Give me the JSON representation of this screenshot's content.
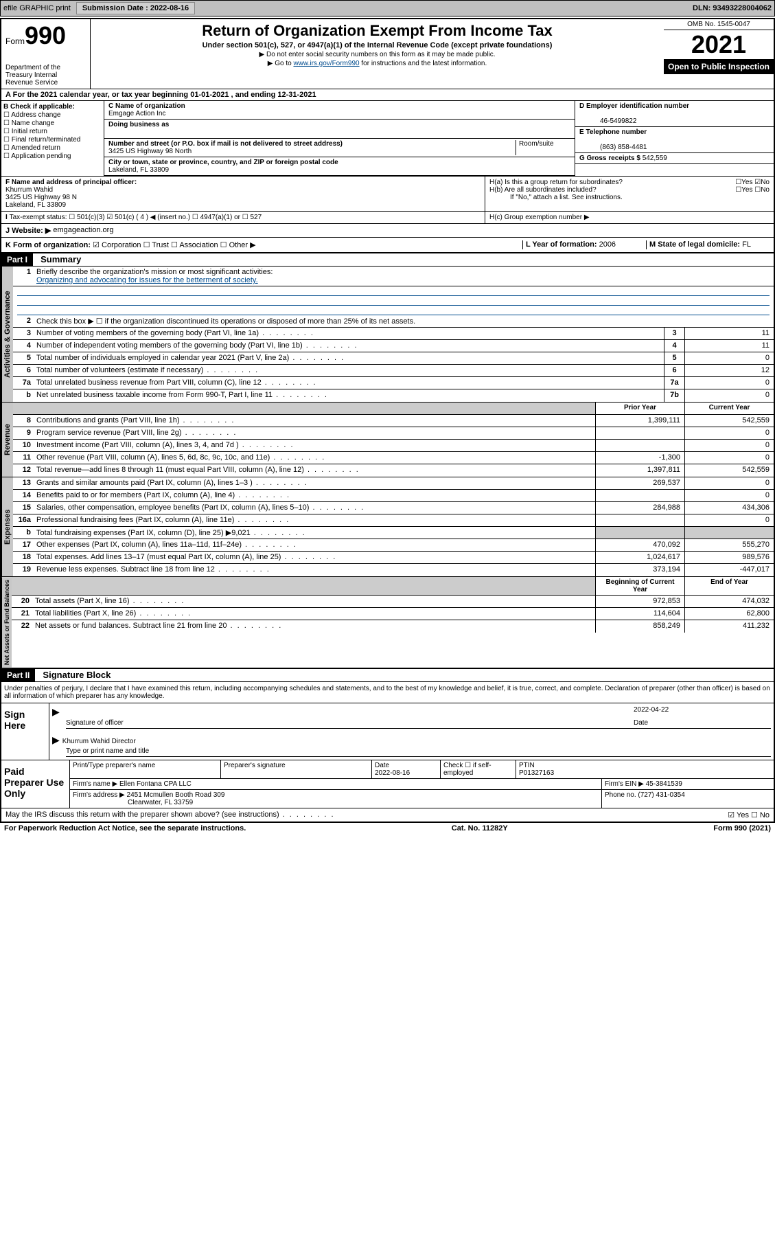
{
  "topbar": {
    "efile": "efile GRAPHIC print",
    "submission_label": "Submission Date : 2022-08-16",
    "dln_label": "DLN: 93493228004062"
  },
  "header": {
    "form_word": "Form",
    "form_num": "990",
    "title": "Return of Organization Exempt From Income Tax",
    "subtitle": "Under section 501(c), 527, or 4947(a)(1) of the Internal Revenue Code (except private foundations)",
    "note1": "▶ Do not enter social security numbers on this form as it may be made public.",
    "note2_pre": "▶ Go to ",
    "note2_link": "www.irs.gov/Form990",
    "note2_post": " for instructions and the latest information.",
    "dept": "Department of the Treasury Internal Revenue Service",
    "omb": "OMB No. 1545-0047",
    "year": "2021",
    "open": "Open to Public Inspection"
  },
  "sectionA": {
    "text": "For the 2021 calendar year, or tax year beginning 01-01-2021  , and ending 12-31-2021"
  },
  "sectionB": {
    "label": "B Check if applicable:",
    "items": [
      "Address change",
      "Name change",
      "Initial return",
      "Final return/terminated",
      "Amended return",
      "Application pending"
    ]
  },
  "sectionC": {
    "name_label": "C Name of organization",
    "name": "Emgage Action Inc",
    "dba_label": "Doing business as",
    "addr_label": "Number and street (or P.O. box if mail is not delivered to street address)",
    "room_label": "Room/suite",
    "addr": "3425 US Highway 98 North",
    "city_label": "City or town, state or province, country, and ZIP or foreign postal code",
    "city": "Lakeland, FL  33809"
  },
  "sectionD": {
    "label": "D Employer identification number",
    "value": "46-5499822"
  },
  "sectionE": {
    "label": "E Telephone number",
    "value": "(863) 858-4481"
  },
  "sectionG": {
    "label": "G Gross receipts $",
    "value": "542,559"
  },
  "sectionF": {
    "label": "F Name and address of principal officer:",
    "name": "Khurrum Wahid",
    "addr": "3425 US Highway 98 N",
    "city": "Lakeland, FL  33809"
  },
  "sectionH": {
    "ha": "H(a)  Is this a group return for subordinates?",
    "hb": "H(b)  Are all subordinates included?",
    "hb_note": "If \"No,\" attach a list. See instructions.",
    "hc": "H(c)  Group exemption number ▶"
  },
  "sectionI": {
    "label": "Tax-exempt status:",
    "opt1": "501(c)(3)",
    "opt2": "501(c) ( 4 ) ◀ (insert no.)",
    "opt3": "4947(a)(1) or",
    "opt4": "527"
  },
  "sectionJ": {
    "label": "J   Website: ▶",
    "value": "emgageaction.org"
  },
  "sectionK": {
    "label": "K Form of organization:",
    "opts": [
      "Corporation",
      "Trust",
      "Association",
      "Other ▶"
    ]
  },
  "sectionL": {
    "label": "L Year of formation:",
    "value": "2006"
  },
  "sectionM": {
    "label": "M State of legal domicile:",
    "value": "FL"
  },
  "part1": {
    "header": "Part I",
    "title": "Summary",
    "tab1": "Activities & Governance",
    "tab2": "Revenue",
    "tab3": "Expenses",
    "tab4": "Net Assets or Fund Balances",
    "line1": "Briefly describe the organization's mission or most significant activities:",
    "mission": "Organizing and advocating for issues for the betterment of society.",
    "line2": "Check this box ▶ ☐  if the organization discontinued its operations or disposed of more than 25% of its net assets.",
    "lines": [
      {
        "n": "3",
        "t": "Number of voting members of the governing body (Part VI, line 1a)",
        "b": "3",
        "v2": "11"
      },
      {
        "n": "4",
        "t": "Number of independent voting members of the governing body (Part VI, line 1b)",
        "b": "4",
        "v2": "11"
      },
      {
        "n": "5",
        "t": "Total number of individuals employed in calendar year 2021 (Part V, line 2a)",
        "b": "5",
        "v2": "0"
      },
      {
        "n": "6",
        "t": "Total number of volunteers (estimate if necessary)",
        "b": "6",
        "v2": "12"
      },
      {
        "n": "7a",
        "t": "Total unrelated business revenue from Part VIII, column (C), line 12",
        "b": "7a",
        "v2": "0"
      },
      {
        "n": "b",
        "t": "Net unrelated business taxable income from Form 990-T, Part I, line 11",
        "b": "7b",
        "v2": "0"
      }
    ],
    "col_prior": "Prior Year",
    "col_current": "Current Year",
    "rev": [
      {
        "n": "8",
        "t": "Contributions and grants (Part VIII, line 1h)",
        "v1": "1,399,111",
        "v2": "542,559"
      },
      {
        "n": "9",
        "t": "Program service revenue (Part VIII, line 2g)",
        "v1": "",
        "v2": "0"
      },
      {
        "n": "10",
        "t": "Investment income (Part VIII, column (A), lines 3, 4, and 7d )",
        "v1": "",
        "v2": "0"
      },
      {
        "n": "11",
        "t": "Other revenue (Part VIII, column (A), lines 5, 6d, 8c, 9c, 10c, and 11e)",
        "v1": "-1,300",
        "v2": "0"
      },
      {
        "n": "12",
        "t": "Total revenue—add lines 8 through 11 (must equal Part VIII, column (A), line 12)",
        "v1": "1,397,811",
        "v2": "542,559"
      }
    ],
    "exp": [
      {
        "n": "13",
        "t": "Grants and similar amounts paid (Part IX, column (A), lines 1–3 )",
        "v1": "269,537",
        "v2": "0"
      },
      {
        "n": "14",
        "t": "Benefits paid to or for members (Part IX, column (A), line 4)",
        "v1": "",
        "v2": "0"
      },
      {
        "n": "15",
        "t": "Salaries, other compensation, employee benefits (Part IX, column (A), lines 5–10)",
        "v1": "284,988",
        "v2": "434,306"
      },
      {
        "n": "16a",
        "t": "Professional fundraising fees (Part IX, column (A), line 11e)",
        "v1": "",
        "v2": "0"
      },
      {
        "n": "b",
        "t": "Total fundraising expenses (Part IX, column (D), line 25) ▶9,021",
        "v1": "",
        "v2": "",
        "gray": true
      },
      {
        "n": "17",
        "t": "Other expenses (Part IX, column (A), lines 11a–11d, 11f–24e)",
        "v1": "470,092",
        "v2": "555,270"
      },
      {
        "n": "18",
        "t": "Total expenses. Add lines 13–17 (must equal Part IX, column (A), line 25)",
        "v1": "1,024,617",
        "v2": "989,576"
      },
      {
        "n": "19",
        "t": "Revenue less expenses. Subtract line 18 from line 12",
        "v1": "373,194",
        "v2": "-447,017"
      }
    ],
    "col_begin": "Beginning of Current Year",
    "col_end": "End of Year",
    "net": [
      {
        "n": "20",
        "t": "Total assets (Part X, line 16)",
        "v1": "972,853",
        "v2": "474,032"
      },
      {
        "n": "21",
        "t": "Total liabilities (Part X, line 26)",
        "v1": "114,604",
        "v2": "62,800"
      },
      {
        "n": "22",
        "t": "Net assets or fund balances. Subtract line 21 from line 20",
        "v1": "858,249",
        "v2": "411,232"
      }
    ]
  },
  "part2": {
    "header": "Part II",
    "title": "Signature Block",
    "perjury": "Under penalties of perjury, I declare that I have examined this return, including accompanying schedules and statements, and to the best of my knowledge and belief, it is true, correct, and complete. Declaration of preparer (other than officer) is based on all information of which preparer has any knowledge.",
    "sign_here": "Sign Here",
    "sig_officer": "Signature of officer",
    "date": "Date",
    "sig_date": "2022-04-22",
    "officer_name": "Khurrum Wahid  Director",
    "type_name": "Type or print name and title",
    "paid": "Paid Preparer Use Only",
    "prep_name_label": "Print/Type preparer's name",
    "prep_sig_label": "Preparer's signature",
    "prep_date_label": "Date",
    "prep_date": "2022-08-16",
    "prep_check": "Check ☐ if self-employed",
    "ptin_label": "PTIN",
    "ptin": "P01327163",
    "firm_name_label": "Firm's name   ▶",
    "firm_name": "Ellen Fontana CPA LLC",
    "firm_ein_label": "Firm's EIN ▶",
    "firm_ein": "45-3841539",
    "firm_addr_label": "Firm's address ▶",
    "firm_addr": "2451 Mcmullen Booth Road 309",
    "firm_city": "Clearwater, FL  33759",
    "firm_phone_label": "Phone no.",
    "firm_phone": "(727) 431-0354",
    "may_irs": "May the IRS discuss this return with the preparer shown above? (see instructions)"
  },
  "footer": {
    "left": "For Paperwork Reduction Act Notice, see the separate instructions.",
    "mid": "Cat. No. 11282Y",
    "right": "Form 990 (2021)"
  }
}
